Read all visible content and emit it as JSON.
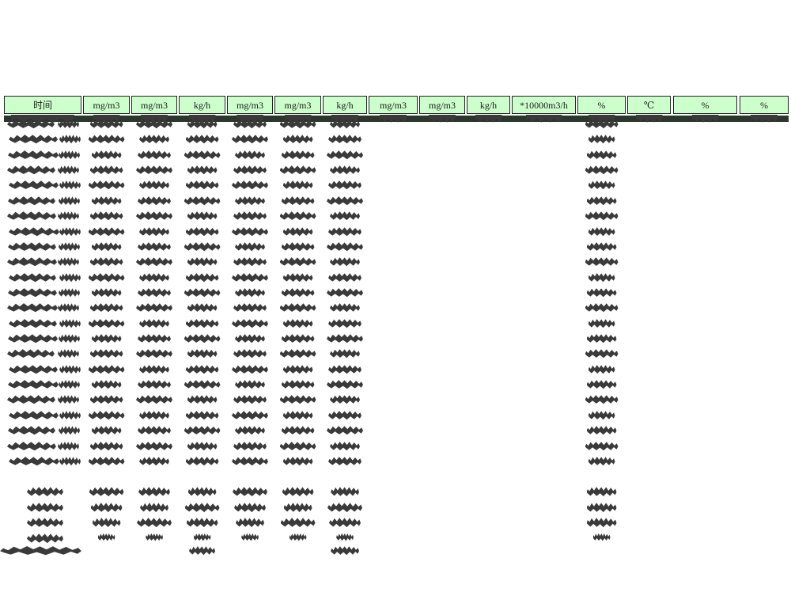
{
  "document": {
    "kind": "redacted-monitoring-report-table",
    "title_visible": false
  },
  "table": {
    "unit_headers": [
      "时间",
      "mg/m3",
      "mg/m3",
      "kg/h",
      "mg/m3",
      "mg/m3",
      "kg/h",
      "mg/m3",
      "mg/m3",
      "kg/h",
      "*10000m3/h",
      "%",
      "℃",
      "%",
      "%"
    ],
    "main_redacted_row_count": 23,
    "columns_with_redacted_values": [
      0,
      1,
      2,
      3,
      4,
      5,
      6,
      11
    ],
    "first_row_fragment_columns": [
      0,
      1,
      2,
      3,
      4,
      5,
      6,
      7,
      8,
      9,
      10,
      11,
      12,
      13,
      14
    ],
    "summary_redacted_row_count": 4,
    "footnote_redacted": true,
    "footnote_extra_blob_columns": [
      3,
      6
    ]
  },
  "colors": {
    "page_bg": "#ffffff",
    "mask_bg": "#000000",
    "header_bg": "#ccffcc",
    "header_text": "#1c1c1c",
    "strip_bg": "#2b362c",
    "blob": "#3a3a3a"
  }
}
